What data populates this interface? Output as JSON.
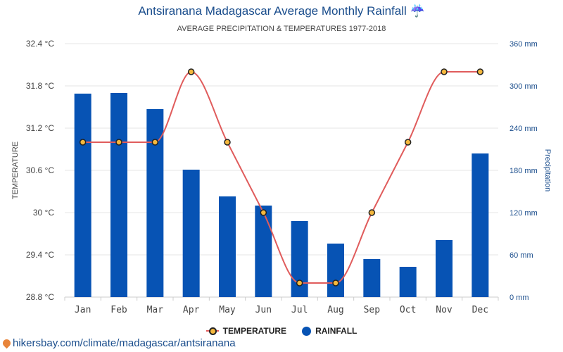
{
  "header": {
    "title": "Antsiranana Madagascar Average Monthly Rainfall ☔",
    "subtitle": "AVERAGE PRECIPITATION & TEMPERATURES 1977-2018"
  },
  "colors": {
    "rain": "#0753b4",
    "temp_line": "#e05c5c",
    "temp_marker": "#f5b83d",
    "grid": "#e6e6e6"
  },
  "chart_data": {
    "type": "bar",
    "categories": [
      "Jan",
      "Feb",
      "Mar",
      "Apr",
      "May",
      "Jun",
      "Jul",
      "Aug",
      "Sep",
      "Oct",
      "Nov",
      "Dec"
    ],
    "series": [
      {
        "name": "RAINFALL",
        "type": "bar",
        "axis": "right",
        "values": [
          289,
          290,
          267,
          181,
          143,
          130,
          108,
          76,
          54,
          43,
          81,
          204
        ]
      },
      {
        "name": "TEMPERATURE",
        "type": "line",
        "axis": "left",
        "values": [
          31,
          31,
          31,
          32,
          31,
          30,
          29,
          29,
          30,
          31,
          32,
          32
        ]
      }
    ],
    "ylabel_left": "TEMPERATURE",
    "ylabel_right": "Precipitation",
    "ylim_left": [
      28.8,
      32.4
    ],
    "ylim_right": [
      0,
      360
    ],
    "yticks_left": [
      "32.4 °C",
      "31.8 °C",
      "31.2 °C",
      "30.6 °C",
      "30 °C",
      "29.4 °C",
      "28.8 °C"
    ],
    "yticks_right": [
      "360 mm",
      "300 mm",
      "240 mm",
      "180 mm",
      "120 mm",
      "60 mm",
      "0 mm"
    ],
    "grid": true,
    "legend": "bottom"
  },
  "legend": {
    "temperature": "TEMPERATURE",
    "rainfall": "RAINFALL"
  },
  "footer": {
    "link": "hikersbay.com/climate/madagascar/antsiranana"
  }
}
